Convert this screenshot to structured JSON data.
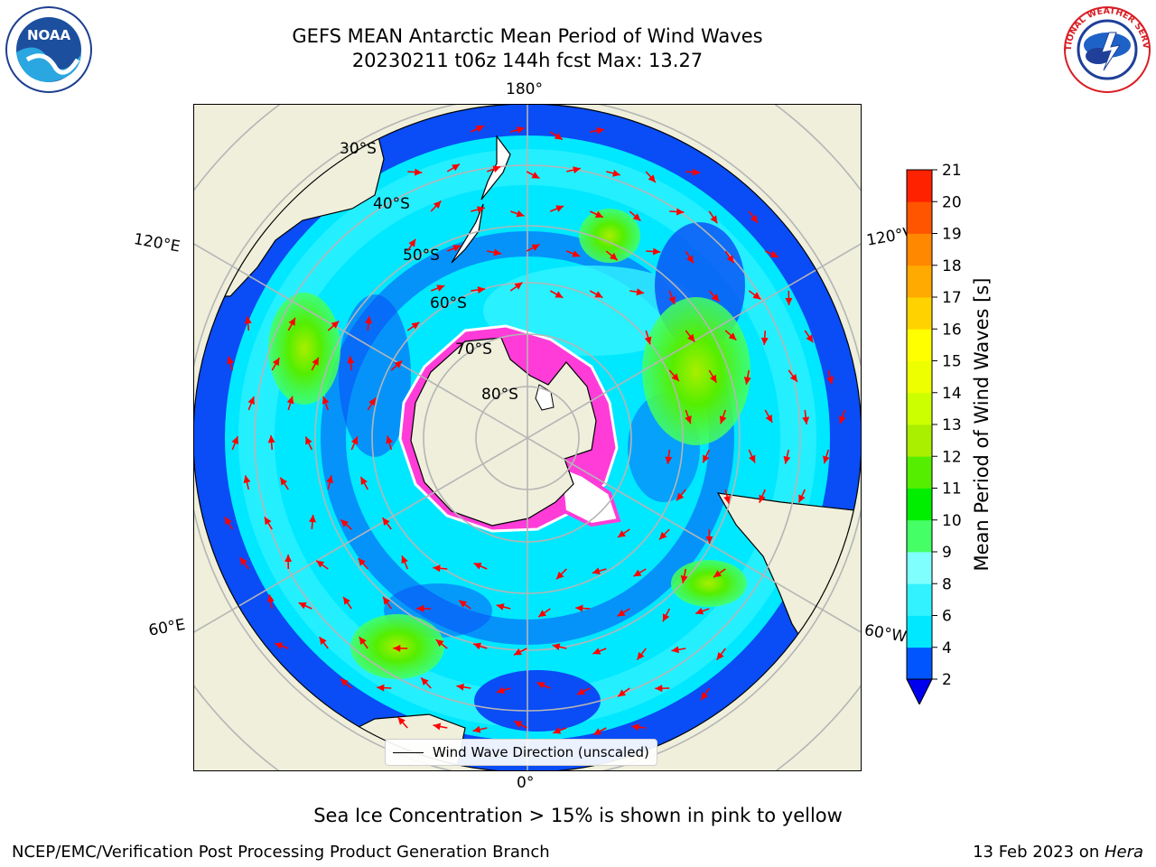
{
  "header": {
    "title": "GEFS MEAN Antarctic Mean Period of Wind Waves",
    "subtitle": "20230211 t06z 144h fcst   Max: 13.27"
  },
  "logos": {
    "noaa": {
      "text": "NOAA",
      "icon": "noaa-logo"
    },
    "nws": {
      "text": "NATIONAL WEATHER SERVICE",
      "icon": "nws-logo"
    }
  },
  "map": {
    "projection": "south-polar-stereographic",
    "longitude_labels": {
      "top": "180°",
      "bottom": "0°",
      "upper_left": "120°E",
      "upper_right": "120°W",
      "lower_left": "60°E",
      "lower_right": "60°W"
    },
    "latitude_labels": [
      "30°S",
      "40°S",
      "50°S",
      "60°S",
      "70°S",
      "80°S"
    ],
    "colors": {
      "land": "#efefdc",
      "ocean_low": "#0a4cf5",
      "ocean_mid": "#00e8ff",
      "sea_ice": "#ff3cd8",
      "arrows": "#ff0000"
    }
  },
  "legend": {
    "label": "Wind Wave Direction (unscaled)"
  },
  "colorbar": {
    "label": "Mean Period of Wind Waves [s]",
    "ticks": [
      "2",
      "4",
      "6",
      "8",
      "9",
      "10",
      "11",
      "12",
      "13",
      "14",
      "15",
      "16",
      "17",
      "18",
      "19",
      "20",
      "21"
    ],
    "colors": [
      "#0055ff",
      "#00e8ff",
      "#33f2ff",
      "#80ffff",
      "#44ff66",
      "#00ee00",
      "#55ee00",
      "#aaee00",
      "#ccff00",
      "#eeff00",
      "#ffff00",
      "#ffd200",
      "#ffaa00",
      "#ff8800",
      "#ff5500",
      "#ff2200"
    ],
    "under_color": "#0000ee"
  },
  "caption": "Sea Ice Concentration > 15% is shown in pink to yellow",
  "footer": {
    "left": "NCEP/EMC/Verification Post Processing Product Generation Branch",
    "right_prefix": "13 Feb 2023 on ",
    "right_machine": "Hera"
  }
}
